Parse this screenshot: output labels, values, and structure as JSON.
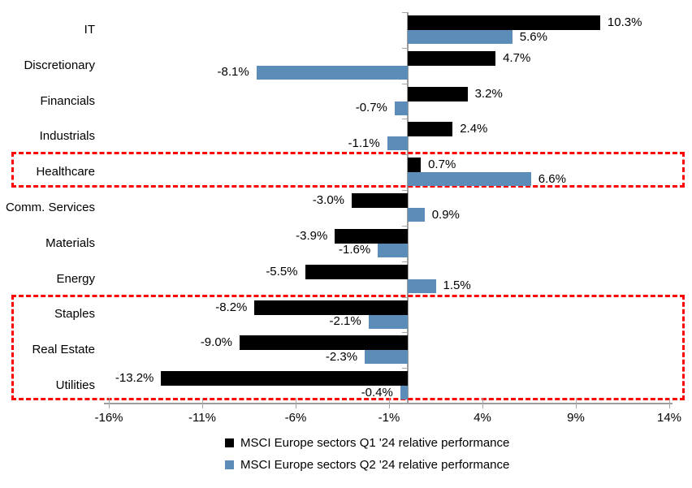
{
  "chart_data": {
    "type": "bar",
    "orientation": "horizontal",
    "title": "",
    "categories": [
      "IT",
      "Discretionary",
      "Financials",
      "Industrials",
      "Healthcare",
      "Comm. Services",
      "Materials",
      "Energy",
      "Staples",
      "Real Estate",
      "Utilities"
    ],
    "series": [
      {
        "name": "MSCI Europe sectors Q1 '24 relative performance",
        "color": "#000000",
        "values": [
          10.3,
          4.7,
          3.2,
          2.4,
          0.7,
          -3.0,
          -3.9,
          -5.5,
          -8.2,
          -9.0,
          -13.2
        ],
        "labels": [
          "10.3%",
          "4.7%",
          "3.2%",
          "2.4%",
          "0.7%",
          "-3.0%",
          "-3.9%",
          "-5.5%",
          "-8.2%",
          "-9.0%",
          "-13.2%"
        ]
      },
      {
        "name": "MSCI Europe sectors Q2 '24 relative performance",
        "color": "#5B8DB8",
        "values": [
          5.6,
          -8.1,
          -0.7,
          -1.1,
          6.6,
          0.9,
          -1.6,
          1.5,
          -2.1,
          -2.3,
          -0.4
        ],
        "labels": [
          "5.6%",
          "-8.1%",
          "-0.7%",
          "-1.1%",
          "6.6%",
          "0.9%",
          "-1.6%",
          "1.5%",
          "-2.1%",
          "-2.3%",
          "-0.4%"
        ]
      }
    ],
    "x_axis": {
      "tick_labels": [
        "-16%",
        "-11%",
        "-6%",
        "-1%",
        "4%",
        "9%",
        "14%"
      ],
      "tick_values": [
        -16,
        -11,
        -6,
        -1,
        4,
        9,
        14
      ],
      "min": -16,
      "max": 14,
      "unit": "%"
    },
    "legend": {
      "position": "bottom",
      "entries": [
        "MSCI Europe sectors Q1 '24 relative performance",
        "MSCI Europe sectors Q2 '24 relative performance"
      ]
    },
    "grid": false,
    "highlight_color": "#FF0000",
    "highlights": [
      {
        "rows": [
          "Healthcare"
        ]
      },
      {
        "rows": [
          "Staples",
          "Real Estate",
          "Utilities"
        ]
      }
    ]
  }
}
